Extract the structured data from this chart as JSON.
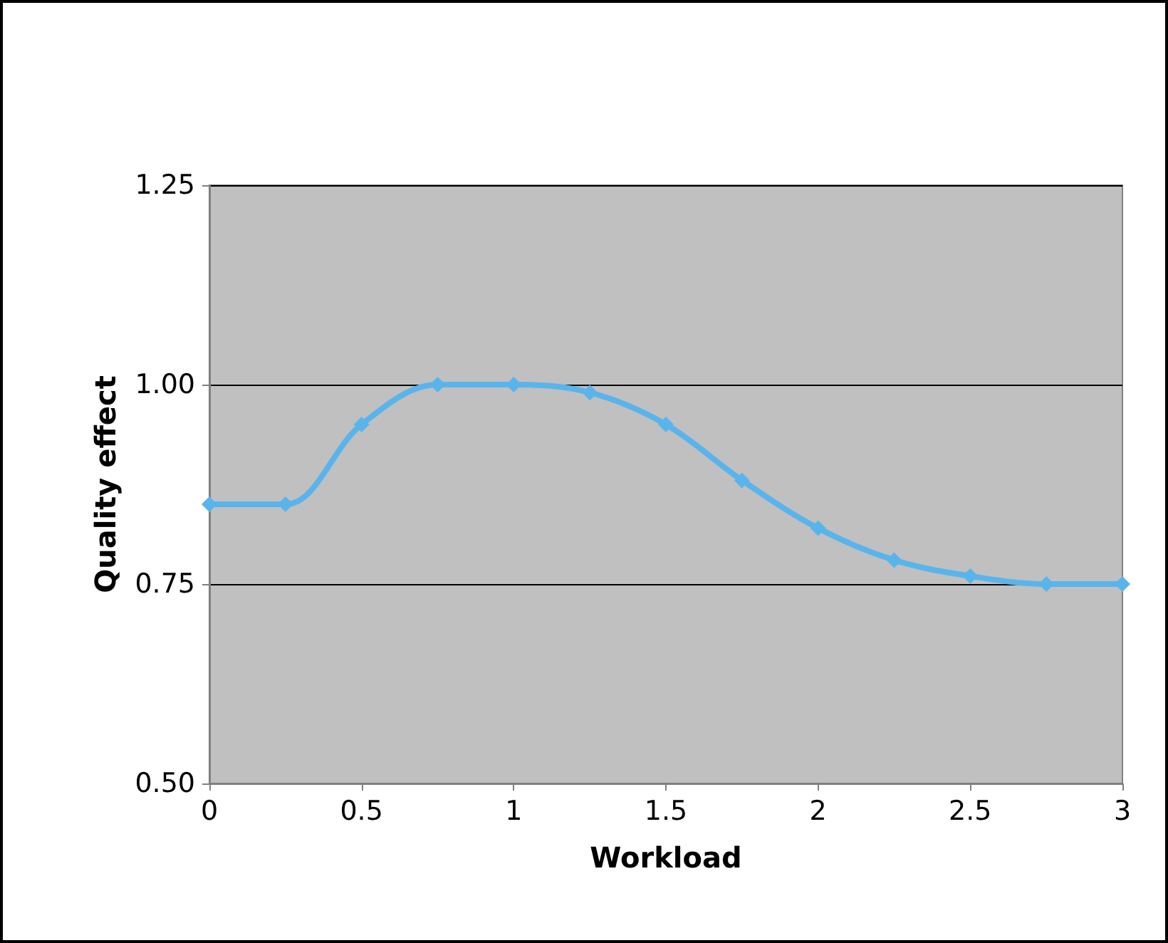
{
  "chart_data": {
    "type": "line",
    "xlabel": "Workload",
    "ylabel": "Quality effect",
    "x": [
      0,
      0.25,
      0.5,
      0.75,
      1,
      1.25,
      1.5,
      1.75,
      2,
      2.25,
      2.5,
      2.75,
      3
    ],
    "series": [
      {
        "color": "#5ab4ec",
        "values": [
          0.85,
          0.85,
          0.95,
          1.0,
          1.0,
          0.99,
          0.95,
          0.88,
          0.82,
          0.78,
          0.76,
          0.75,
          0.75
        ]
      }
    ],
    "xlim": [
      0,
      3
    ],
    "xticks": [
      0,
      0.5,
      1,
      1.5,
      2,
      2.5,
      3
    ],
    "ylim": [
      0.5,
      1.25
    ],
    "yticks": [
      {
        "value": 0.5,
        "label": "0.50"
      },
      {
        "value": 0.75,
        "label": "0.75"
      },
      {
        "value": 1.0,
        "label": "1.00"
      },
      {
        "value": 1.25,
        "label": "1.25"
      }
    ],
    "grid": "y",
    "marker": "diamond",
    "line_style": "solid"
  }
}
